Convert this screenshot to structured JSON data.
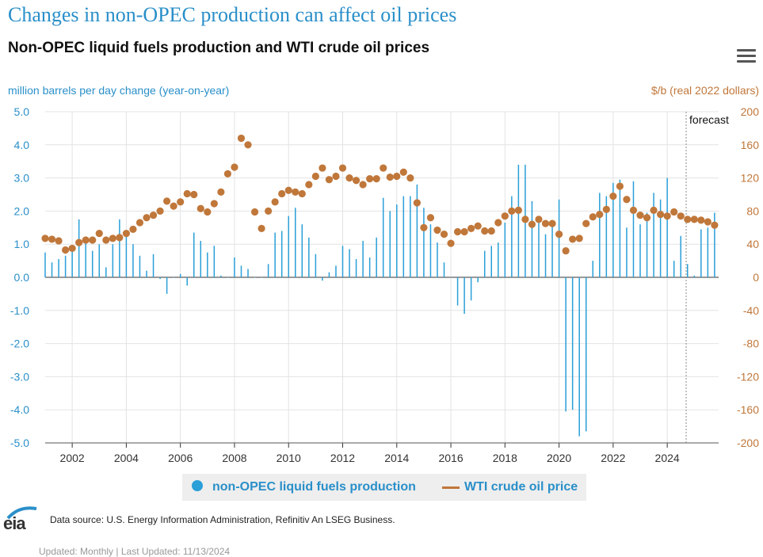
{
  "header": {
    "title": "Changes in non-OPEC production can affect oil prices",
    "subtitle": "Non-OPEC liquid fuels production and WTI crude oil prices"
  },
  "colors": {
    "production": "#2a9fd8",
    "price": "#c0773a",
    "title": "#2a8fc9"
  },
  "icons": {
    "menu": "hamburger-menu-icon"
  },
  "chart_data": {
    "type": "bar+scatter",
    "y_left_label": "million barrels per day change (year-on-year)",
    "y_right_label": "$/b (real 2022 dollars)",
    "y_left_range": [
      -5.0,
      5.0
    ],
    "y_right_range": [
      -200,
      200
    ],
    "y_left_ticks": [
      "5.0",
      "4.0",
      "3.0",
      "2.0",
      "1.0",
      "0.0",
      "-1.0",
      "-2.0",
      "-3.0",
      "-4.0",
      "-5.0"
    ],
    "y_right_ticks": [
      "200",
      "160",
      "120",
      "80",
      "40",
      "0",
      "-40",
      "-80",
      "-120",
      "-160",
      "-200"
    ],
    "x_ticks": [
      "2002",
      "2004",
      "2006",
      "2008",
      "2010",
      "2012",
      "2014",
      "2016",
      "2018",
      "2020",
      "2022",
      "2024"
    ],
    "x_range": [
      2001.0,
      2025.9
    ],
    "forecast_start": 2024.7,
    "forecast_label": "forecast",
    "grid": true,
    "legend_position": "bottom",
    "series": [
      {
        "name": "non-OPEC liquid fuels production",
        "kind": "bar",
        "x": [
          2001.0,
          2001.25,
          2001.5,
          2001.75,
          2002.0,
          2002.25,
          2002.5,
          2002.75,
          2003.0,
          2003.25,
          2003.5,
          2003.75,
          2004.0,
          2004.25,
          2004.5,
          2004.75,
          2005.0,
          2005.25,
          2005.5,
          2005.75,
          2006.0,
          2006.25,
          2006.5,
          2006.75,
          2007.0,
          2007.25,
          2007.5,
          2007.75,
          2008.0,
          2008.25,
          2008.5,
          2008.75,
          2009.0,
          2009.25,
          2009.5,
          2009.75,
          2010.0,
          2010.25,
          2010.5,
          2010.75,
          2011.0,
          2011.25,
          2011.5,
          2011.75,
          2012.0,
          2012.25,
          2012.5,
          2012.75,
          2013.0,
          2013.25,
          2013.5,
          2013.75,
          2014.0,
          2014.25,
          2014.5,
          2014.75,
          2015.0,
          2015.25,
          2015.5,
          2015.75,
          2016.0,
          2016.25,
          2016.5,
          2016.75,
          2017.0,
          2017.25,
          2017.5,
          2017.75,
          2018.0,
          2018.25,
          2018.5,
          2018.75,
          2019.0,
          2019.25,
          2019.5,
          2019.75,
          2020.0,
          2020.25,
          2020.5,
          2020.75,
          2021.0,
          2021.25,
          2021.5,
          2021.75,
          2022.0,
          2022.25,
          2022.5,
          2022.75,
          2023.0,
          2023.25,
          2023.5,
          2023.75,
          2024.0,
          2024.25,
          2024.5,
          2024.75,
          2025.0,
          2025.25,
          2025.5,
          2025.75
        ],
        "values": [
          0.75,
          0.45,
          0.55,
          0.65,
          0.85,
          1.75,
          1.05,
          0.8,
          1.0,
          0.3,
          1.0,
          1.75,
          1.35,
          1.0,
          0.65,
          0.2,
          0.7,
          -0.05,
          -0.5,
          0.0,
          0.1,
          -0.25,
          1.35,
          1.1,
          0.75,
          0.95,
          0.05,
          0.0,
          0.6,
          0.35,
          0.25,
          0.0,
          0.0,
          0.4,
          1.35,
          1.4,
          1.85,
          2.1,
          1.6,
          1.2,
          0.7,
          -0.1,
          0.15,
          0.35,
          0.95,
          0.85,
          0.55,
          1.1,
          0.6,
          1.2,
          2.4,
          2.0,
          2.2,
          2.45,
          2.45,
          2.8,
          2.1,
          1.6,
          1.05,
          0.45,
          0.0,
          -0.85,
          -1.1,
          -0.7,
          -0.15,
          0.8,
          0.95,
          1.05,
          1.65,
          2.45,
          3.4,
          3.4,
          2.3,
          1.85,
          1.3,
          1.7,
          2.35,
          -4.05,
          -4.0,
          -4.8,
          -4.65,
          0.5,
          2.55,
          2.45,
          2.85,
          2.95,
          1.5,
          2.9,
          1.6,
          1.95,
          2.55,
          2.35,
          3.0,
          0.5,
          1.25,
          0.4,
          0.05,
          1.45,
          1.5,
          1.95
        ]
      },
      {
        "name": "WTI crude oil price",
        "kind": "scatter",
        "x": [
          2001.0,
          2001.25,
          2001.5,
          2001.75,
          2002.0,
          2002.25,
          2002.5,
          2002.75,
          2003.0,
          2003.25,
          2003.5,
          2003.75,
          2004.0,
          2004.25,
          2004.5,
          2004.75,
          2005.0,
          2005.25,
          2005.5,
          2005.75,
          2006.0,
          2006.25,
          2006.5,
          2006.75,
          2007.0,
          2007.25,
          2007.5,
          2007.75,
          2008.0,
          2008.25,
          2008.5,
          2008.75,
          2009.0,
          2009.25,
          2009.5,
          2009.75,
          2010.0,
          2010.25,
          2010.5,
          2010.75,
          2011.0,
          2011.25,
          2011.5,
          2011.75,
          2012.0,
          2012.25,
          2012.5,
          2012.75,
          2013.0,
          2013.25,
          2013.5,
          2013.75,
          2014.0,
          2014.25,
          2014.5,
          2014.75,
          2015.0,
          2015.25,
          2015.5,
          2015.75,
          2016.0,
          2016.25,
          2016.5,
          2016.75,
          2017.0,
          2017.25,
          2017.5,
          2017.75,
          2018.0,
          2018.25,
          2018.5,
          2018.75,
          2019.0,
          2019.25,
          2019.5,
          2019.75,
          2020.0,
          2020.25,
          2020.5,
          2020.75,
          2021.0,
          2021.25,
          2021.5,
          2021.75,
          2022.0,
          2022.25,
          2022.5,
          2022.75,
          2023.0,
          2023.25,
          2023.5,
          2023.75,
          2024.0,
          2024.25,
          2024.5,
          2024.75,
          2025.0,
          2025.25,
          2025.5,
          2025.75
        ],
        "values": [
          47,
          46,
          44,
          33,
          35,
          42,
          45,
          45,
          53,
          45,
          47,
          48,
          53,
          58,
          66,
          72,
          75,
          80,
          92,
          86,
          91,
          101,
          100,
          83,
          79,
          89,
          103,
          125,
          133,
          168,
          160,
          79,
          59,
          80,
          91,
          101,
          105,
          103,
          101,
          112,
          122,
          132,
          118,
          122,
          132,
          120,
          117,
          112,
          119,
          119,
          132,
          121,
          122,
          127,
          120,
          90,
          60,
          72,
          57,
          52,
          41,
          55,
          55,
          59,
          62,
          56,
          56,
          66,
          74,
          80,
          81,
          70,
          64,
          70,
          65,
          65,
          52,
          32,
          46,
          47,
          65,
          73,
          76,
          82,
          98,
          110,
          94,
          81,
          75,
          72,
          81,
          76,
          74,
          79,
          74,
          70,
          70,
          69,
          67,
          63
        ]
      }
    ]
  },
  "legend": {
    "production_label": "non-OPEC liquid fuels production",
    "price_label": "WTI crude oil price"
  },
  "footer": {
    "logo_text": "eia",
    "source": "Data source: U.S. Energy Information Administration, Refinitiv An LSEG Business.",
    "updated": "Updated: Monthly | Last Updated: 11/13/2024"
  }
}
